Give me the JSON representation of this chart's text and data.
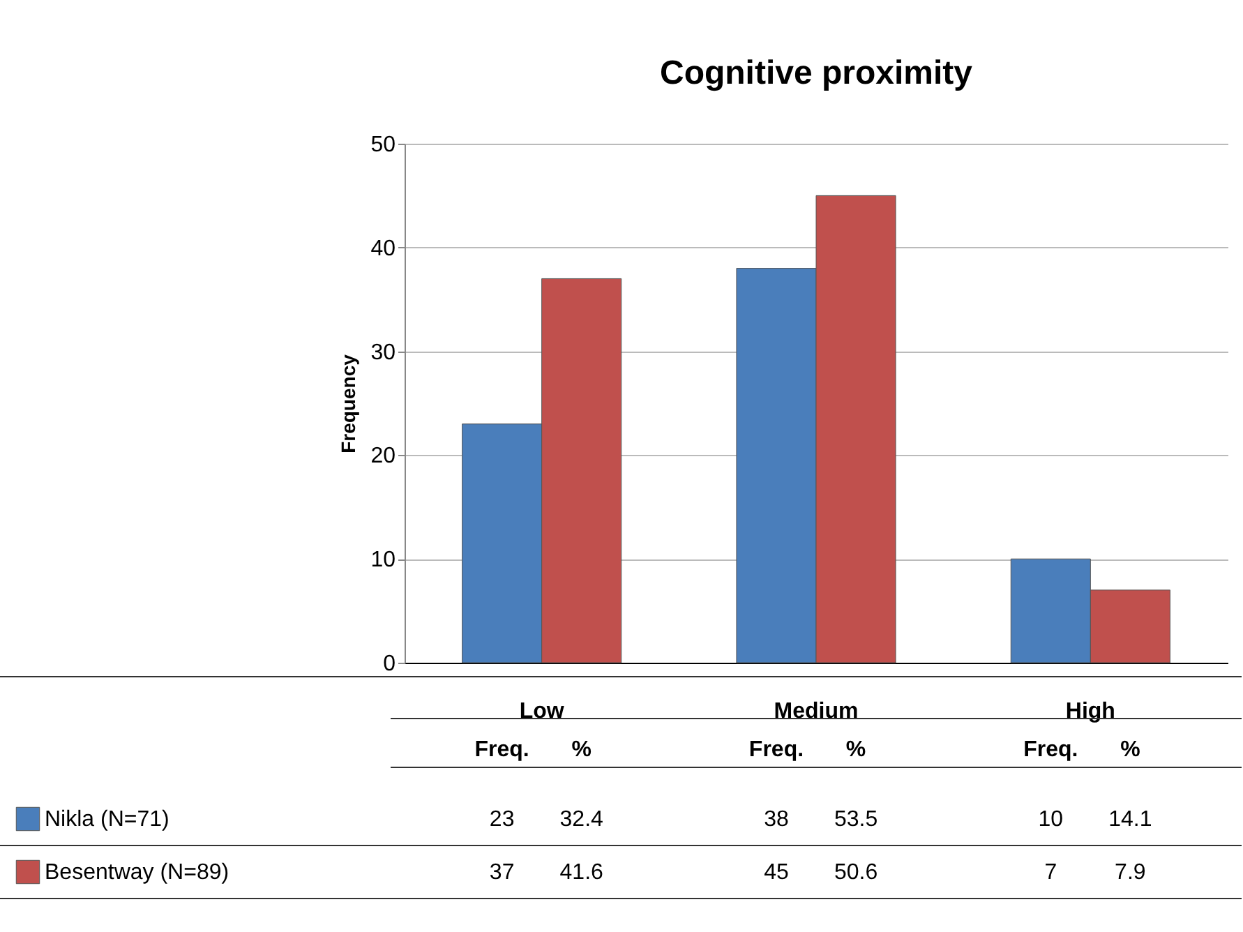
{
  "chart_data": {
    "type": "bar",
    "title": "Cognitive proximity",
    "ylabel": "Frequency",
    "categories": [
      "Low",
      "Medium",
      "High"
    ],
    "series": [
      {
        "name": "Nikla (N=71)",
        "color": "#4a7ebb",
        "values": [
          23,
          38,
          10
        ]
      },
      {
        "name": "Besentway (N=89)",
        "color": "#c0504d",
        "values": [
          37,
          45,
          7
        ]
      }
    ],
    "ylim": [
      0,
      50
    ],
    "yticks": [
      0,
      10,
      20,
      30,
      40,
      50
    ],
    "grid": "y",
    "data_labels": true,
    "legend": "bottom left",
    "annotations": [
      "Freq.",
      "%",
      "32.4",
      "53.5",
      "14.1",
      "41.6",
      "50.6",
      "7.9"
    ]
  }
}
